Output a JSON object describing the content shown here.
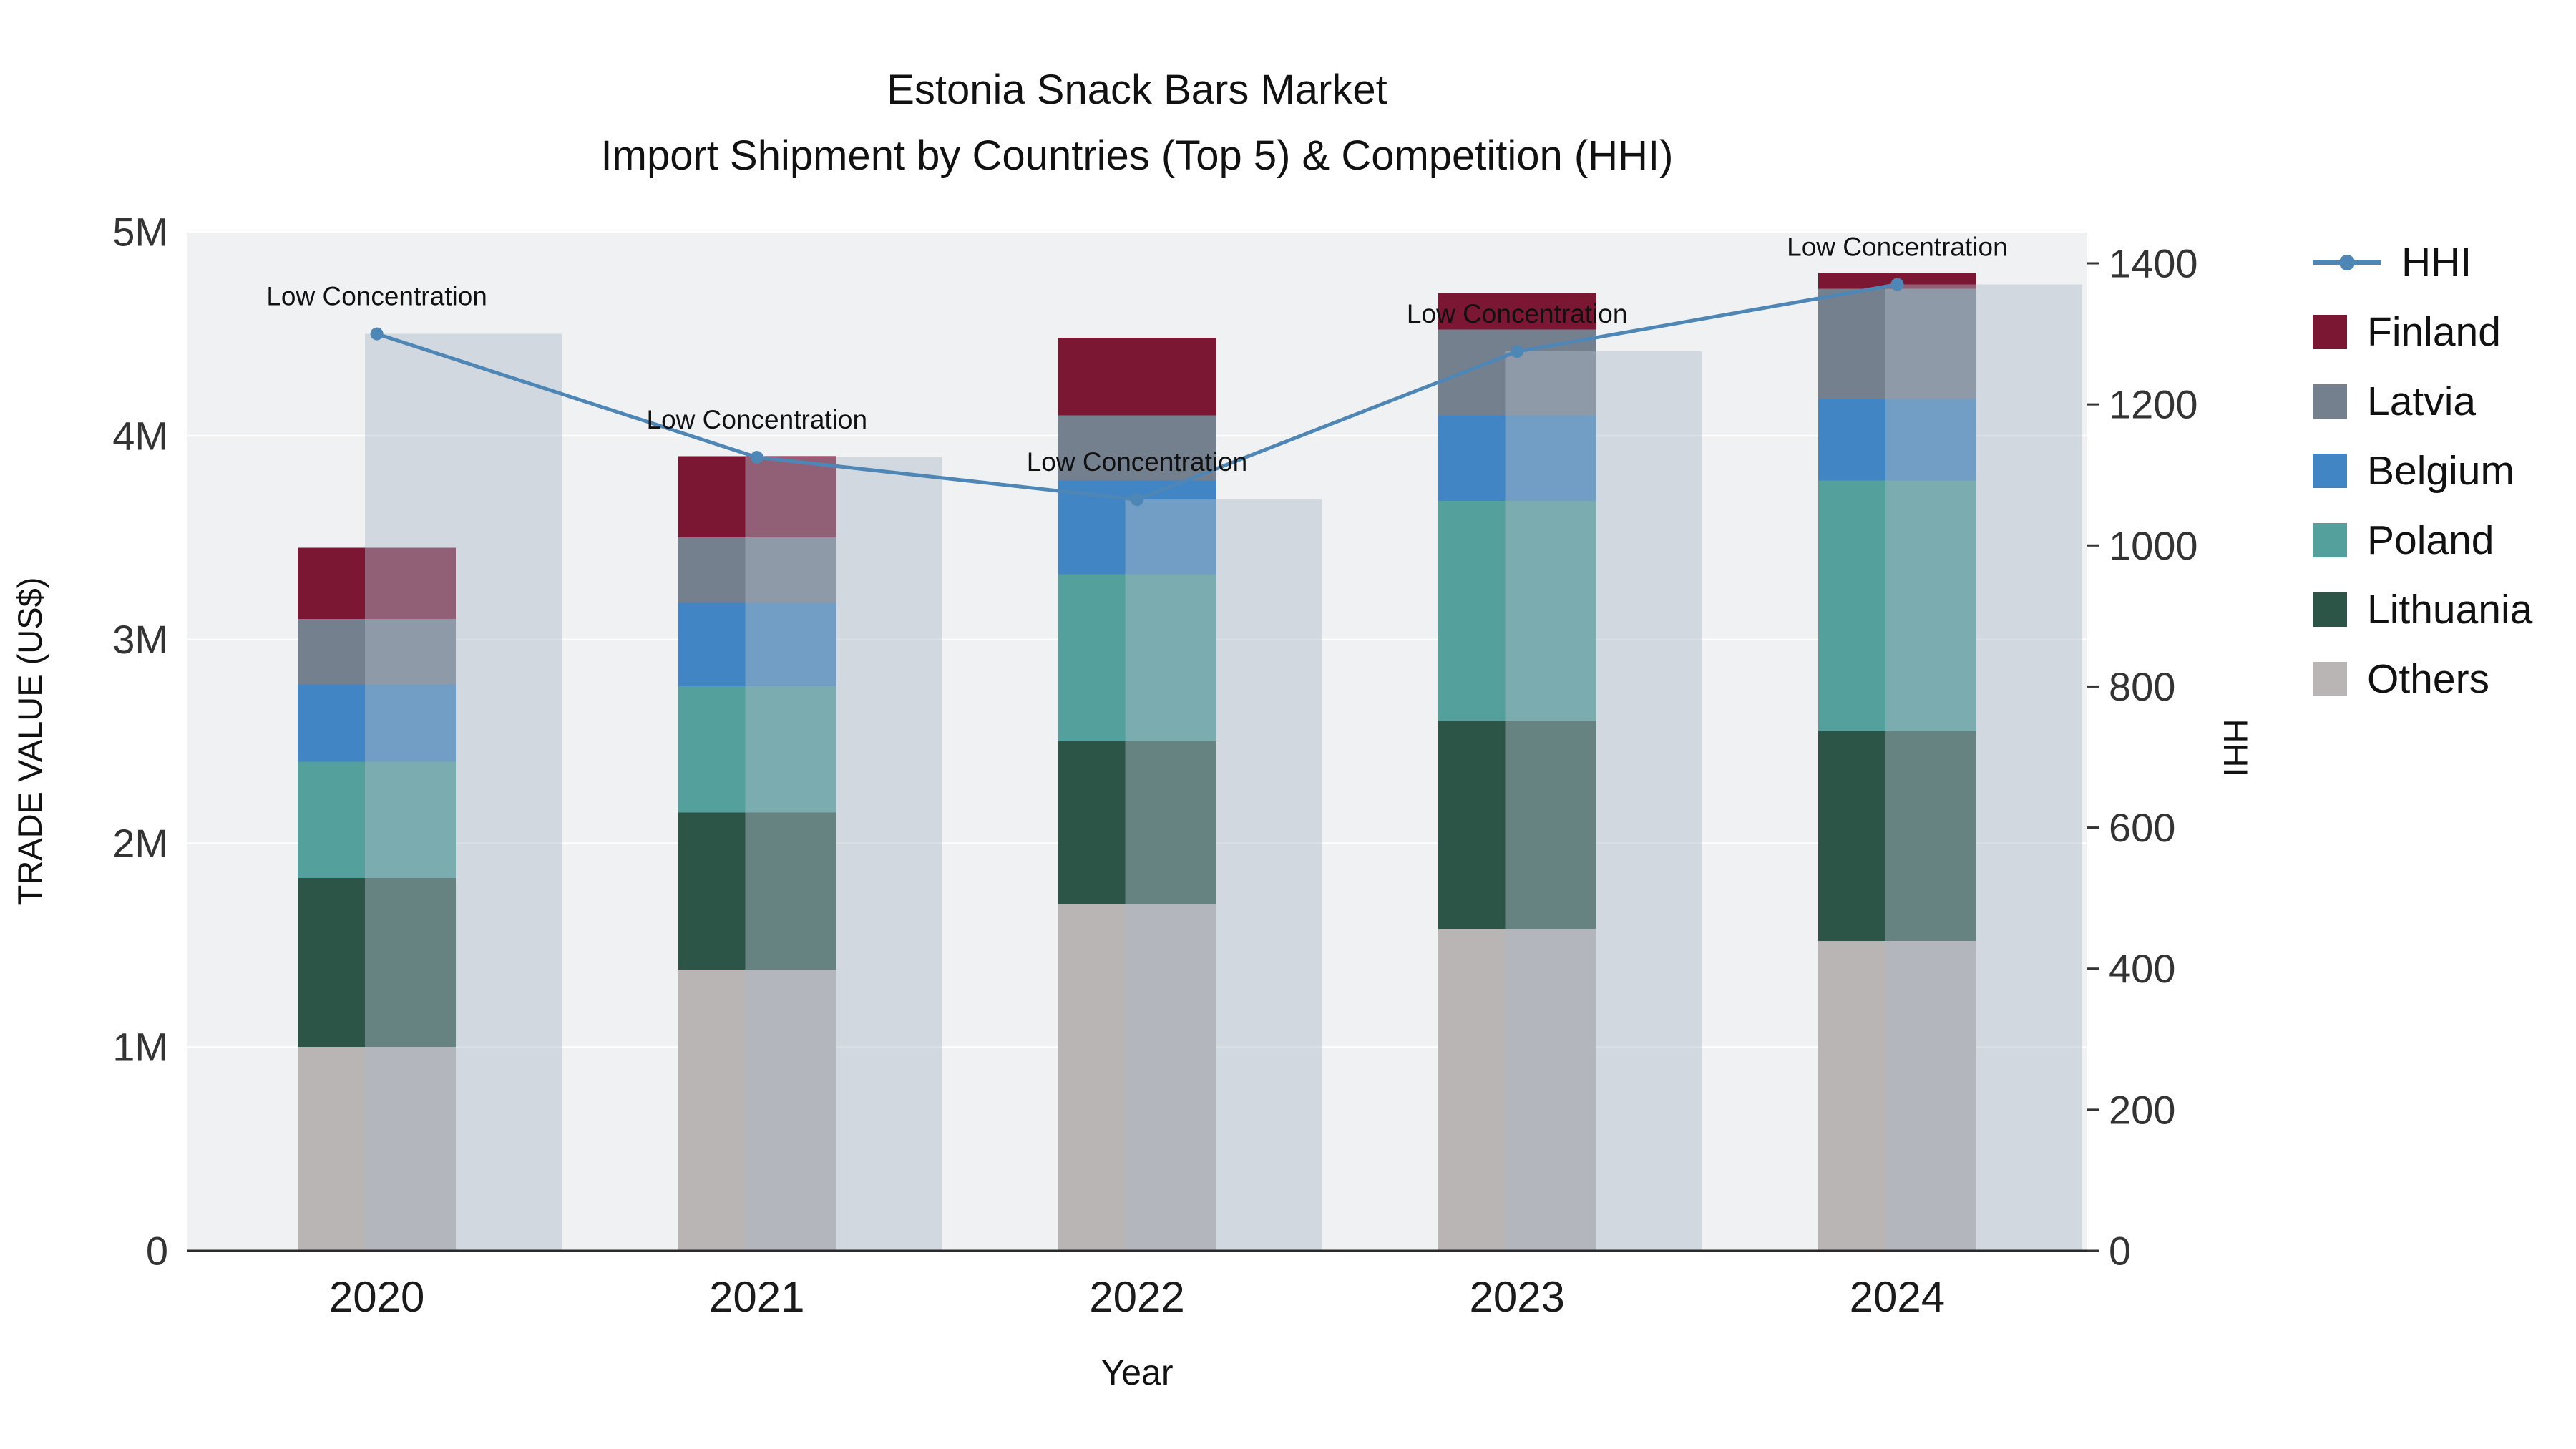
{
  "chart_data": {
    "type": "combo-stacked-bar-line",
    "title": "Estonia Snack Bars Market",
    "subtitle": "Import Shipment by Countries (Top 5) & Competition (HHI)",
    "xlabel": "Year",
    "ylabel_left": "TRADE VALUE (US$)",
    "ylabel_right": "HHI",
    "categories": [
      "2020",
      "2021",
      "2022",
      "2023",
      "2024"
    ],
    "stack_order": [
      "Others",
      "Lithuania",
      "Poland",
      "Belgium",
      "Latvia",
      "Finland"
    ],
    "series": [
      {
        "name": "Finland",
        "color": "#7c1733",
        "values": [
          350000,
          400000,
          380000,
          180000,
          80000
        ]
      },
      {
        "name": "Latvia",
        "color": "#75808f",
        "values": [
          320000,
          320000,
          320000,
          420000,
          540000
        ]
      },
      {
        "name": "Belgium",
        "color": "#4285c4",
        "values": [
          380000,
          410000,
          460000,
          420000,
          400000
        ]
      },
      {
        "name": "Poland",
        "color": "#53a09d",
        "values": [
          570000,
          620000,
          820000,
          1080000,
          1230000
        ]
      },
      {
        "name": "Lithuania",
        "color": "#2d5547",
        "values": [
          830000,
          770000,
          800000,
          1020000,
          1030000
        ]
      },
      {
        "name": "Others",
        "color": "#b9b5b5",
        "values": [
          1000000,
          1380000,
          1700000,
          1580000,
          1520000
        ]
      }
    ],
    "hhi": {
      "name": "HHI",
      "line_color": "#4e86b5",
      "bar_fill": "rgba(172,186,200,0.45)",
      "values": [
        1300,
        1125,
        1065,
        1275,
        1370
      ],
      "annotation": "Low Concentration"
    },
    "left_axis": {
      "range": [
        0,
        5000000
      ],
      "tick_labels": [
        "0",
        "1M",
        "2M",
        "3M",
        "4M",
        "5M"
      ]
    },
    "right_axis": {
      "range": [
        0,
        1400
      ],
      "tick_labels": [
        "0",
        "200",
        "400",
        "600",
        "800",
        "1000",
        "1200",
        "1400"
      ]
    },
    "legend": [
      "HHI",
      "Finland",
      "Latvia",
      "Belgium",
      "Poland",
      "Lithuania",
      "Others"
    ],
    "plot_bg": "#f0f1f2",
    "grid_color": "#ffffff"
  }
}
